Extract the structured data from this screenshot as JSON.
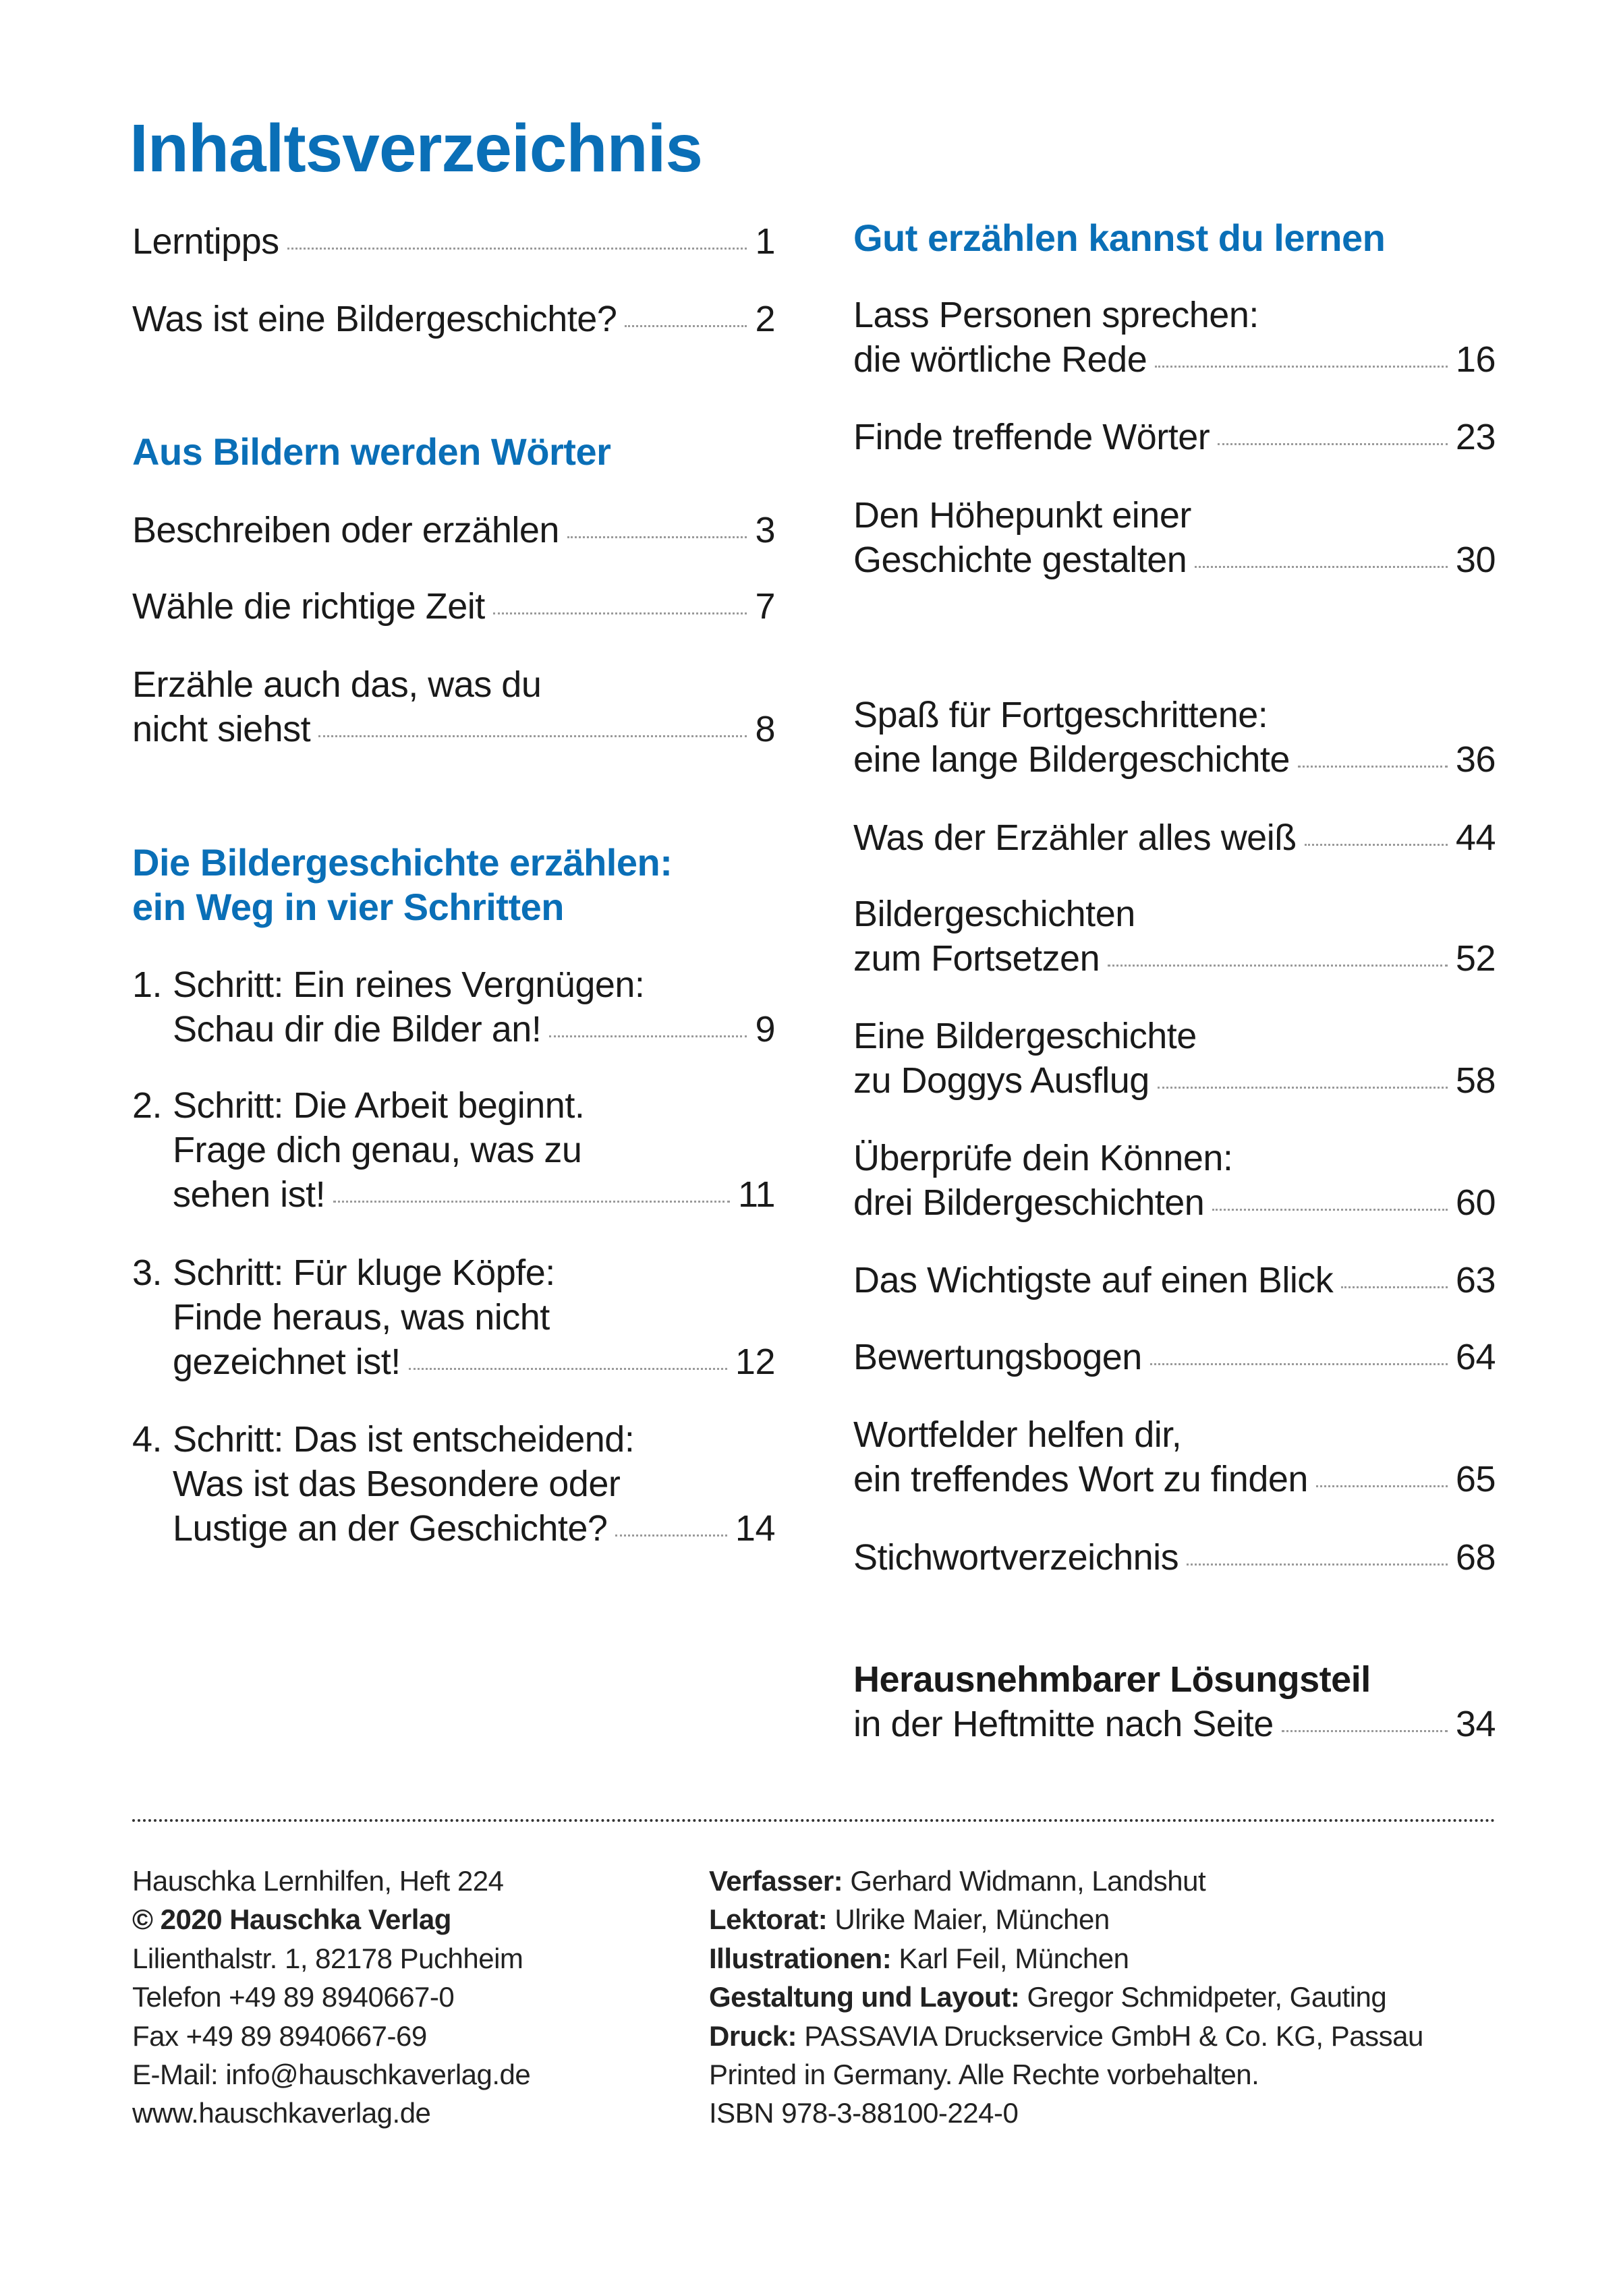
{
  "title": "Inhaltsverzeichnis",
  "left_column": [
    {
      "lines": [
        "Lerntipps"
      ],
      "page": "1"
    },
    {
      "lines": [
        "Was ist eine Bildergeschichte?"
      ],
      "page": "2"
    },
    {
      "heading": [
        "Aus Bildern werden Wörter"
      ]
    },
    {
      "lines": [
        "Beschreiben oder erzählen"
      ],
      "page": "3"
    },
    {
      "lines": [
        "Wähle die richtige Zeit"
      ],
      "page": "7"
    },
    {
      "lines": [
        "Erzähle auch das, was du",
        "nicht siehst"
      ],
      "page": "8"
    },
    {
      "heading": [
        "Die Bildergeschichte erzählen:",
        "ein Weg in vier Schritten"
      ]
    },
    {
      "number": "1.",
      "lines": [
        "Schritt: Ein reines Vergnügen:",
        "Schau dir die Bilder an!"
      ],
      "page": "9"
    },
    {
      "number": "2.",
      "lines": [
        "Schritt: Die Arbeit beginnt.",
        "Frage dich genau, was zu",
        "sehen ist!"
      ],
      "page": "11"
    },
    {
      "number": "3.",
      "lines": [
        "Schritt: Für kluge Köpfe:",
        "Finde heraus, was nicht",
        "gezeichnet ist!"
      ],
      "page": "12"
    },
    {
      "number": "4.",
      "lines": [
        "Schritt: Das ist entscheidend:",
        "Was ist das Besondere oder",
        "Lustige an der Geschichte?"
      ],
      "page": "14"
    }
  ],
  "right_column": [
    {
      "heading": [
        "Gut erzählen kannst du lernen"
      ]
    },
    {
      "lines": [
        "Lass Personen sprechen:",
        "die wörtliche Rede"
      ],
      "page": "16"
    },
    {
      "lines": [
        "Finde treffende Wörter"
      ],
      "page": "23"
    },
    {
      "lines": [
        "Den Höhepunkt einer",
        "Geschichte gestalten"
      ],
      "page": "30"
    },
    {
      "lines": [
        "Spaß für Fortgeschrittene:",
        "eine lange Bildergeschichte"
      ],
      "page": "36"
    },
    {
      "lines": [
        "Was der Erzähler alles weiß"
      ],
      "page": "44"
    },
    {
      "lines": [
        "Bildergeschichten",
        "zum Fortsetzen"
      ],
      "page": "52"
    },
    {
      "lines": [
        "Eine Bildergeschichte",
        "zu Doggys Ausflug"
      ],
      "page": "58"
    },
    {
      "lines": [
        "Überprüfe dein Können:",
        "drei Bildergeschichten"
      ],
      "page": "60"
    },
    {
      "lines": [
        "Das Wichtigste auf einen Blick"
      ],
      "page": "63"
    },
    {
      "lines": [
        "Bewertungsbogen"
      ],
      "page": "64"
    },
    {
      "lines": [
        "Wortfelder helfen dir,",
        "ein treffendes Wort zu finden"
      ],
      "page": "65"
    },
    {
      "lines": [
        "Stichwortverzeichnis"
      ],
      "page": "68"
    },
    {
      "bold_line": "Herausnehmbarer Lösungsteil",
      "lines": [
        "in der Heftmitte nach Seite"
      ],
      "page": "34"
    }
  ],
  "footer": {
    "left": [
      {
        "text": "Hauschka Lernhilfen, Heft 224"
      },
      {
        "bold": "© 2020 Hauschka Verlag"
      },
      {
        "text": "Lilienthalstr. 1, 82178 Puchheim"
      },
      {
        "text": "Telefon +49 89 8940667-0"
      },
      {
        "text": "Fax +49 89 8940667-69"
      },
      {
        "text": "E-Mail: info@hauschkaverlag.de"
      },
      {
        "text": "www.hauschkaverlag.de"
      }
    ],
    "right": [
      {
        "bold": "Verfasser:",
        "text": " Gerhard Widmann, Landshut"
      },
      {
        "bold": "Lektorat:",
        "text": " Ulrike Maier, München"
      },
      {
        "bold": "Illustrationen:",
        "text": " Karl Feil, München"
      },
      {
        "bold": "Gestaltung und Layout:",
        "text": " Gregor Schmidpeter, Gauting"
      },
      {
        "bold": "Druck:",
        "text": " PASSAVIA Druckservice GmbH & Co. KG, Passau"
      },
      {
        "text": "Printed in Germany. Alle Rechte vorbehalten."
      },
      {
        "text": "ISBN 978-3-88100-224-0"
      }
    ]
  },
  "colors": {
    "accent": "#0a6fb7",
    "text": "#1a1a1a"
  }
}
